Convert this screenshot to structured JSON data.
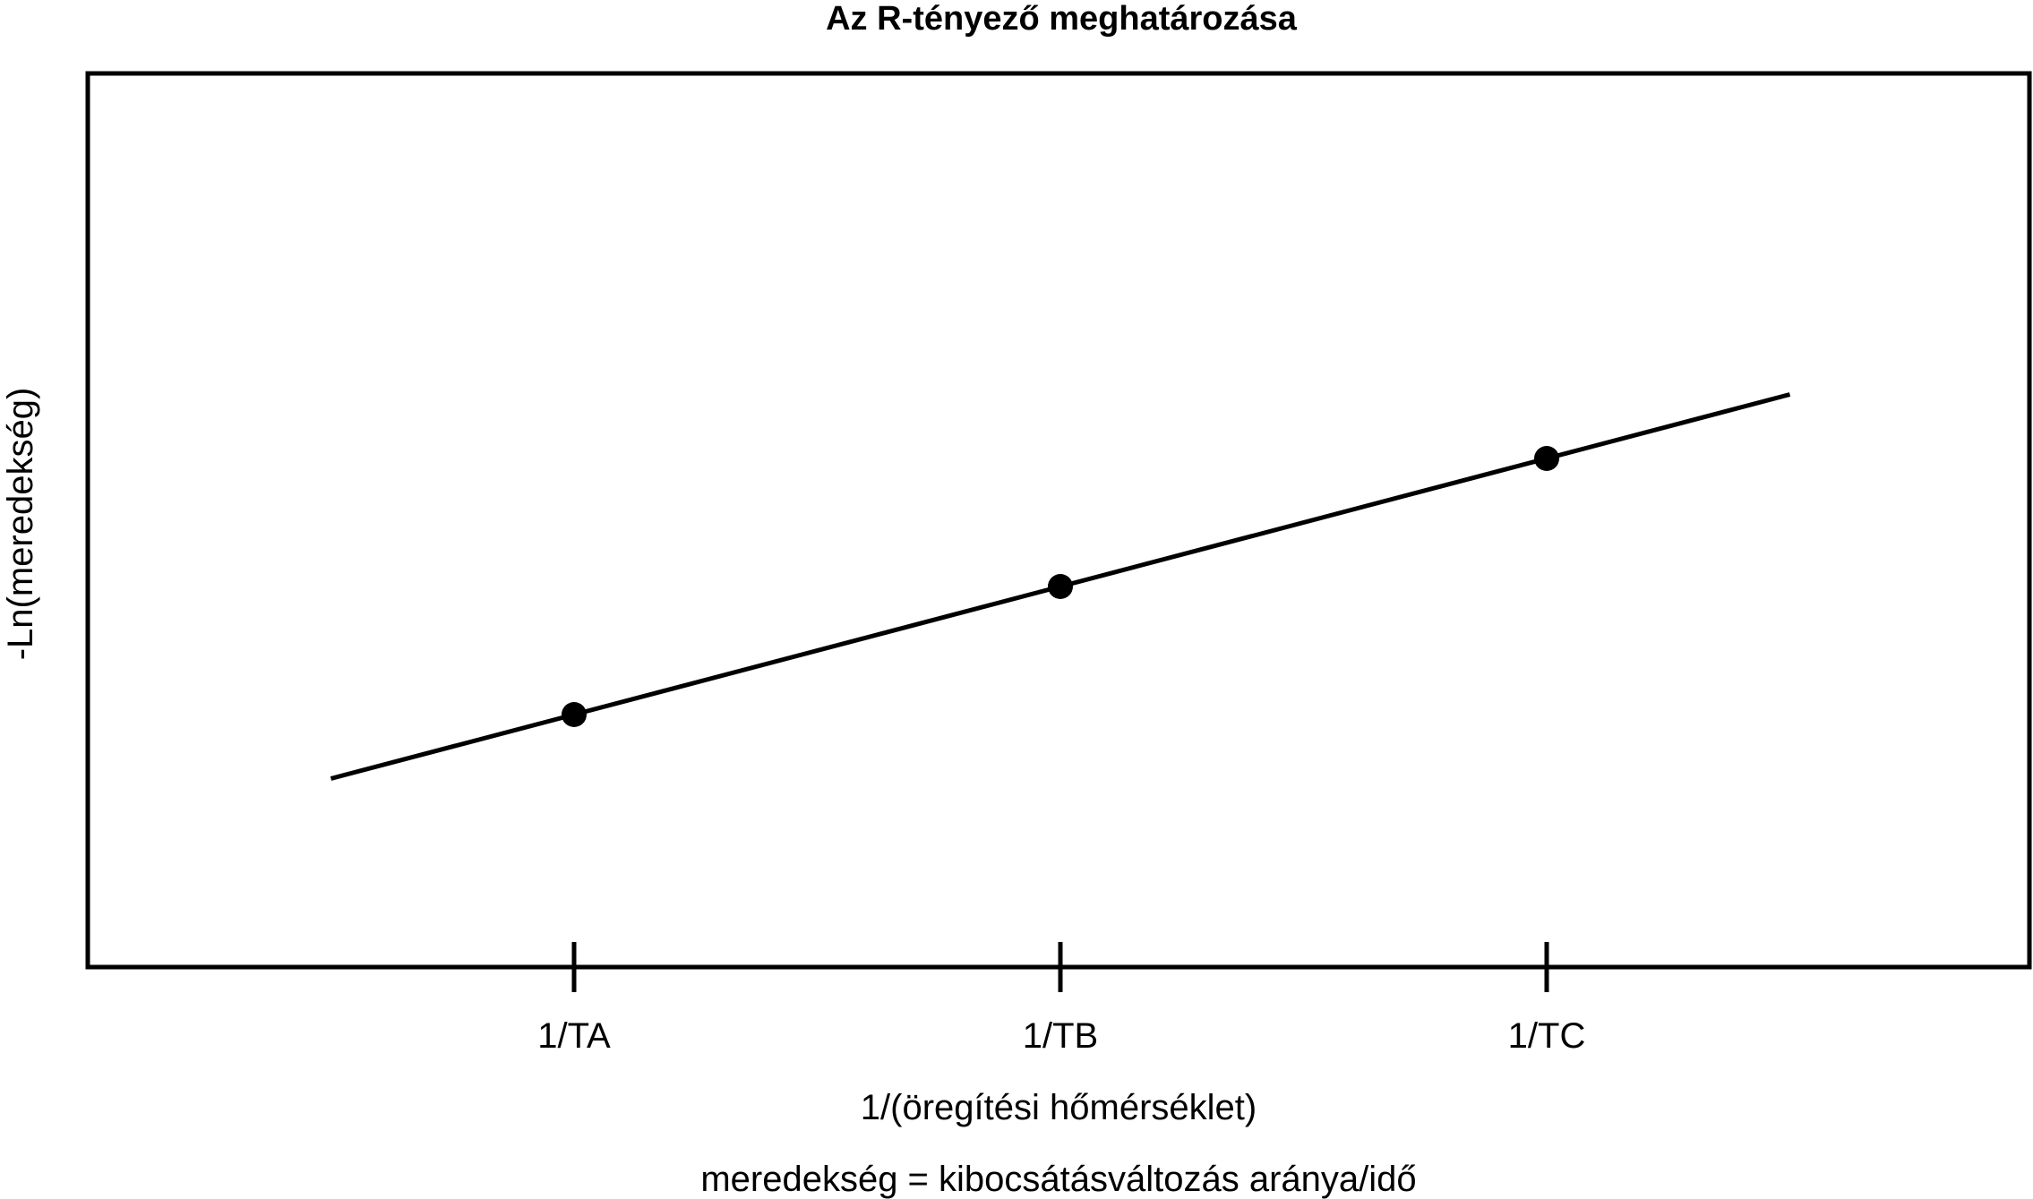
{
  "chart_data": {
    "type": "line",
    "title": "Az R-tényező meghatározása",
    "xlabel": "1/(öregítési hőmérséklet)",
    "ylabel": "-Ln(meredekség)",
    "note": "meredekség = kibocsátásváltozás aránya/idő",
    "categories": [
      "1/TA",
      "1/TB",
      "1/TC"
    ],
    "x": [
      1,
      2,
      3
    ],
    "points": [
      {
        "x": 1,
        "y": 1.0
      },
      {
        "x": 2,
        "y": 2.0
      },
      {
        "x": 3,
        "y": 3.0
      }
    ],
    "fit_line": {
      "x_start": 0.5,
      "x_end": 3.5,
      "y_start": 0.5,
      "y_end": 3.5
    },
    "xlim": [
      -0.0,
      4.0
    ],
    "ylim": [
      -1.0,
      6.0
    ],
    "grid": false,
    "legend": "none",
    "colors": {
      "line": "#000000",
      "points": "#000000",
      "axes": "#000000"
    }
  }
}
